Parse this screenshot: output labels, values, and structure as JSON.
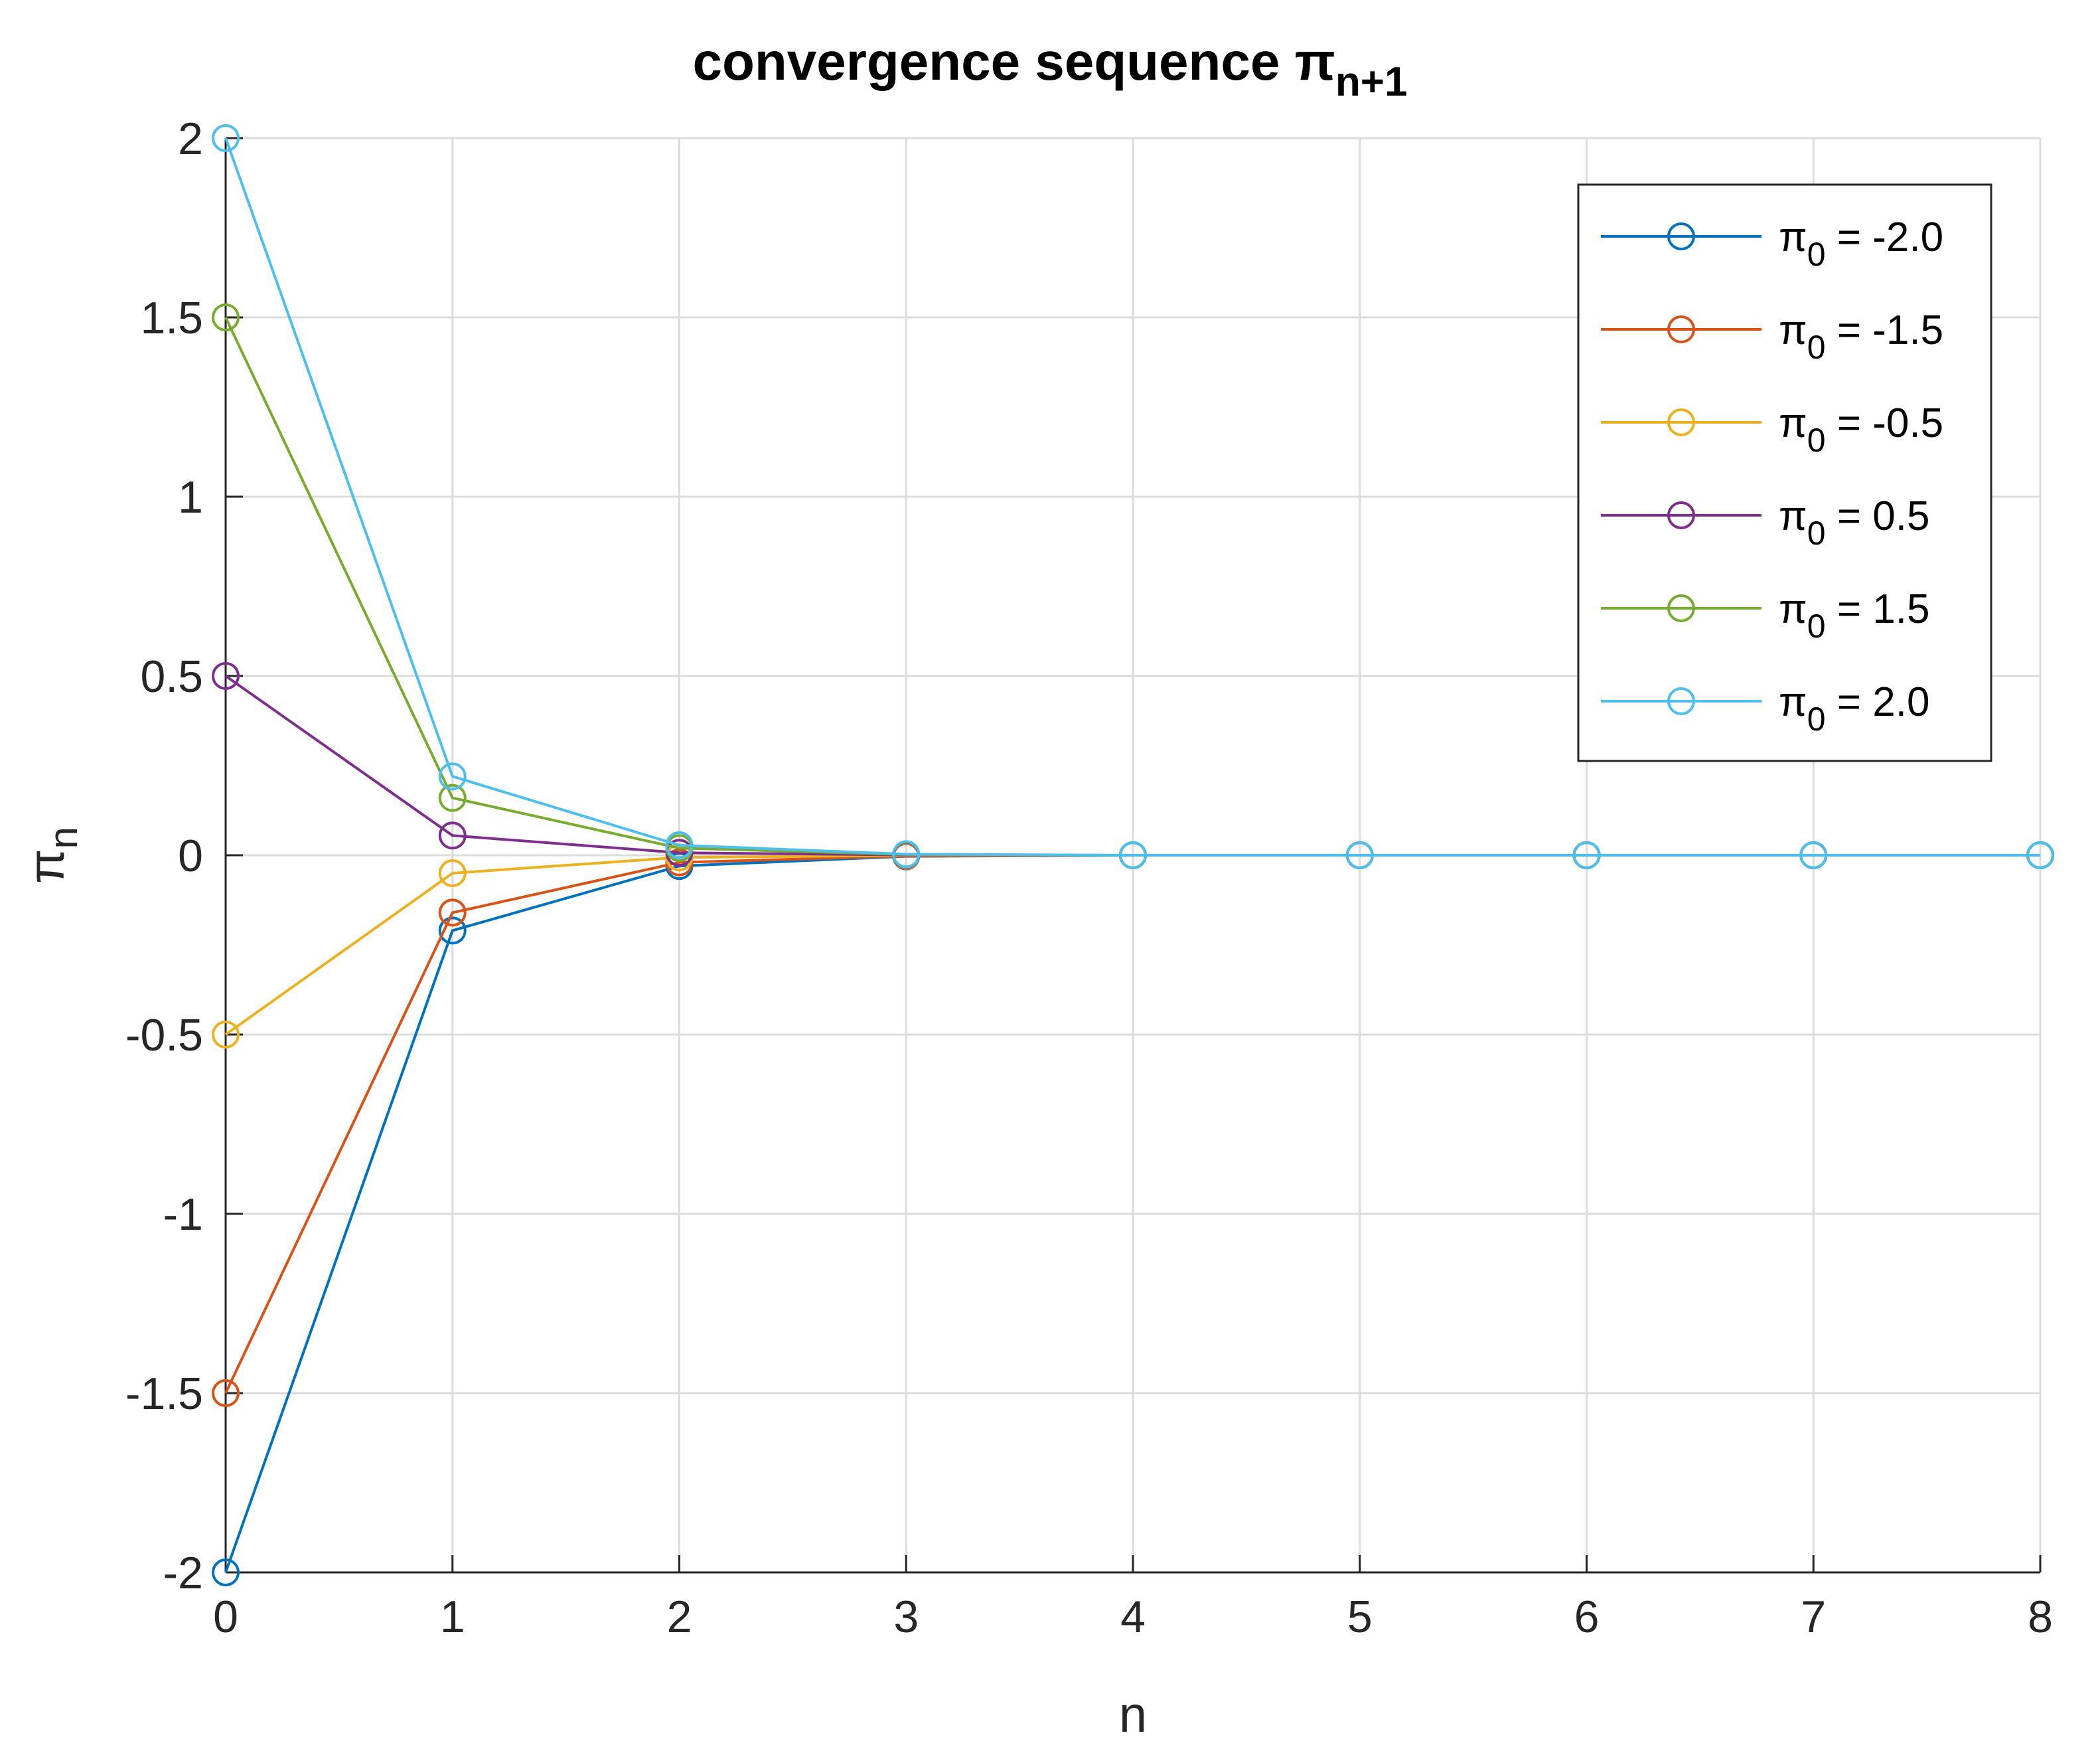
{
  "chart_data": {
    "type": "line",
    "title": "convergence sequence π",
    "title_subscript": "n+1",
    "xlabel": "n",
    "ylabel": "π",
    "ylabel_subscript": "n",
    "xlim": [
      0,
      8
    ],
    "ylim": [
      -2,
      2
    ],
    "x_ticks": [
      0,
      1,
      2,
      3,
      4,
      5,
      6,
      7,
      8
    ],
    "y_ticks": [
      -2,
      -1.5,
      -1,
      -0.5,
      0,
      0.5,
      1,
      1.5,
      2
    ],
    "y_tick_labels": [
      "-2",
      "-1.5",
      "-1",
      "-0.5",
      "0",
      "0.5",
      "1",
      "1.5",
      "2"
    ],
    "grid": true,
    "legend_position": "top-right",
    "marker": "open-circle",
    "x": [
      0,
      1,
      2,
      3,
      4,
      5,
      6,
      7,
      8
    ],
    "series": [
      {
        "name": "π",
        "name_subscript": "0",
        "name_suffix": " = -2.0",
        "color": "#0072BD",
        "values": [
          -2.0,
          -0.21,
          -0.03,
          -0.003,
          0,
          0,
          0,
          0,
          0
        ]
      },
      {
        "name": "π",
        "name_subscript": "0",
        "name_suffix": " = -1.5",
        "color": "#D95319",
        "values": [
          -1.5,
          -0.16,
          -0.02,
          -0.002,
          0,
          0,
          0,
          0,
          0
        ]
      },
      {
        "name": "π",
        "name_subscript": "0",
        "name_suffix": " = -0.5",
        "color": "#EDB120",
        "values": [
          -0.5,
          -0.05,
          -0.006,
          -0.0006,
          0,
          0,
          0,
          0,
          0
        ]
      },
      {
        "name": "π",
        "name_subscript": "0",
        "name_suffix": " = 0.5",
        "color": "#7E2F8E",
        "values": [
          0.5,
          0.055,
          0.007,
          0.0007,
          0,
          0,
          0,
          0,
          0
        ]
      },
      {
        "name": "π",
        "name_subscript": "0",
        "name_suffix": " = 1.5",
        "color": "#77AC30",
        "values": [
          1.5,
          0.16,
          0.02,
          0.002,
          0,
          0,
          0,
          0,
          0
        ]
      },
      {
        "name": "π",
        "name_subscript": "0",
        "name_suffix": " = 2.0",
        "color": "#4DBEEE",
        "values": [
          2.0,
          0.22,
          0.028,
          0.003,
          0,
          0,
          0,
          0,
          0
        ]
      }
    ]
  }
}
